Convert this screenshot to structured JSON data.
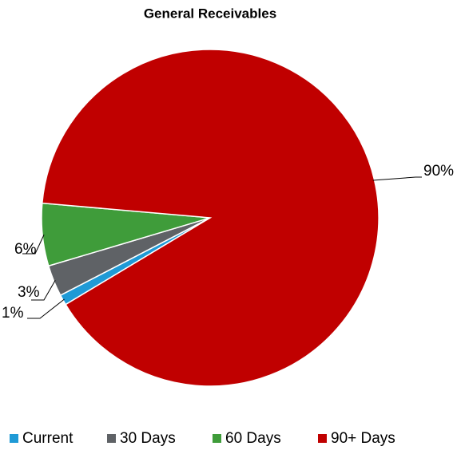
{
  "chart_data": {
    "type": "pie",
    "title": "General Receivables",
    "categories": [
      "Current",
      "30 Days",
      "60 Days",
      "90+ Days"
    ],
    "values": [
      1,
      3,
      6,
      90
    ],
    "value_labels": [
      "1%",
      "3%",
      "6%",
      "90%"
    ],
    "colors": [
      "#1f9ad6",
      "#5f6266",
      "#3f9c3a",
      "#c00000"
    ],
    "legend": "bottom"
  }
}
